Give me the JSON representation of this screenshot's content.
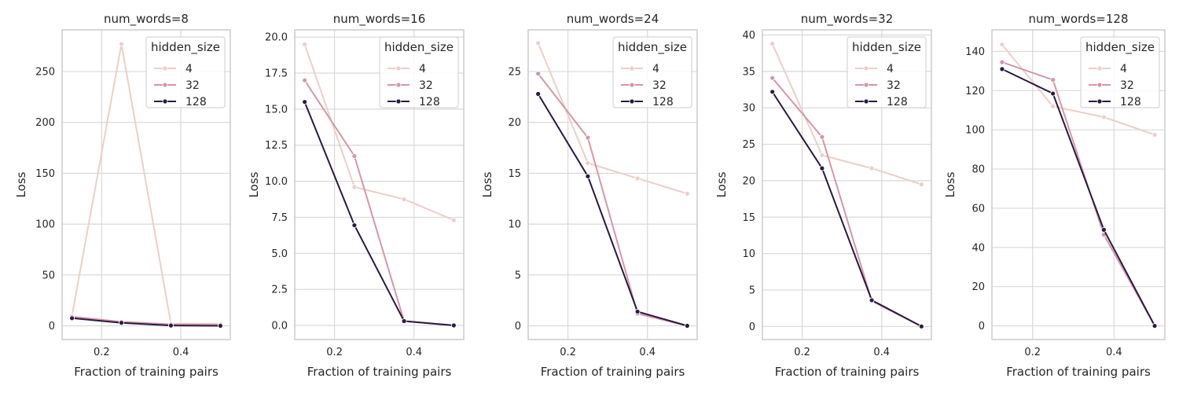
{
  "chart_data": [
    {
      "type": "line",
      "title": "num_words=8",
      "xlabel": "Fraction of training pairs",
      "ylabel": "Loss",
      "x": [
        0.125,
        0.25,
        0.375,
        0.5
      ],
      "xlim": [
        0.1,
        0.525
      ],
      "ylim": [
        -13.5,
        291
      ],
      "xticks": [
        0.2,
        0.4
      ],
      "xtick_labels": [
        "0.2",
        "0.4"
      ],
      "yticks": [
        0,
        50,
        100,
        150,
        200,
        250
      ],
      "ytick_labels": [
        "0",
        "50",
        "100",
        "150",
        "200",
        "250"
      ],
      "legend": {
        "title": "hidden_size",
        "placement": "top-right"
      },
      "series": [
        {
          "name": "4",
          "color": "#ebcfc8",
          "values": [
            10.0,
            277.0,
            2.0,
            2.0
          ]
        },
        {
          "name": "32",
          "color": "#d497a7",
          "values": [
            9.0,
            4.0,
            1.5,
            1.0
          ]
        },
        {
          "name": "128",
          "color": "#2a1a40",
          "values": [
            7.5,
            3.0,
            0.3,
            0.0
          ]
        }
      ],
      "grid": true
    },
    {
      "type": "line",
      "title": "num_words=16",
      "xlabel": "Fraction of training pairs",
      "ylabel": "Loss",
      "x": [
        0.125,
        0.25,
        0.375,
        0.5
      ],
      "xlim": [
        0.1,
        0.525
      ],
      "ylim": [
        -0.98,
        20.5
      ],
      "xticks": [
        0.2,
        0.4
      ],
      "xtick_labels": [
        "0.2",
        "0.4"
      ],
      "yticks": [
        0,
        2.5,
        5,
        7.5,
        10,
        12.5,
        15,
        17.5,
        20
      ],
      "ytick_labels": [
        "0.0",
        "2.5",
        "5.0",
        "7.5",
        "10.0",
        "12.5",
        "15.0",
        "17.5",
        "20.0"
      ],
      "legend": {
        "title": "hidden_size",
        "placement": "top-right"
      },
      "series": [
        {
          "name": "4",
          "color": "#ebcfc8",
          "values": [
            19.5,
            9.6,
            8.75,
            7.3
          ]
        },
        {
          "name": "32",
          "color": "#d497a7",
          "values": [
            17.0,
            11.75,
            0.3,
            0.0
          ]
        },
        {
          "name": "128",
          "color": "#2a1a40",
          "values": [
            15.5,
            6.95,
            0.3,
            0.0
          ]
        }
      ],
      "grid": true
    },
    {
      "type": "line",
      "title": "num_words=24",
      "xlabel": "Fraction of training pairs",
      "ylabel": "Loss",
      "x": [
        0.125,
        0.25,
        0.375,
        0.5
      ],
      "xlim": [
        0.1,
        0.525
      ],
      "ylim": [
        -1.35,
        29.1
      ],
      "xticks": [
        0.2,
        0.4
      ],
      "xtick_labels": [
        "0.2",
        "0.4"
      ],
      "yticks": [
        0,
        5,
        10,
        15,
        20,
        25
      ],
      "ytick_labels": [
        "0",
        "5",
        "10",
        "15",
        "20",
        "25"
      ],
      "legend": {
        "title": "hidden_size",
        "placement": "top-right"
      },
      "series": [
        {
          "name": "4",
          "color": "#ebcfc8",
          "values": [
            27.8,
            16.0,
            14.5,
            13.0
          ]
        },
        {
          "name": "32",
          "color": "#d497a7",
          "values": [
            24.8,
            18.5,
            1.2,
            0.0
          ]
        },
        {
          "name": "128",
          "color": "#2a1a40",
          "values": [
            22.8,
            14.7,
            1.4,
            0.0
          ]
        }
      ],
      "grid": true
    },
    {
      "type": "line",
      "title": "num_words=32",
      "xlabel": "Fraction of training pairs",
      "ylabel": "Loss",
      "x": [
        0.125,
        0.25,
        0.375,
        0.5
      ],
      "xlim": [
        0.1,
        0.525
      ],
      "ylim": [
        -1.8,
        40.7
      ],
      "xticks": [
        0.2,
        0.4
      ],
      "xtick_labels": [
        "0.2",
        "0.4"
      ],
      "yticks": [
        0,
        5,
        10,
        15,
        20,
        25,
        30,
        35,
        40
      ],
      "ytick_labels": [
        "0",
        "5",
        "10",
        "15",
        "20",
        "25",
        "30",
        "35",
        "40"
      ],
      "legend": {
        "title": "hidden_size",
        "placement": "top-right"
      },
      "series": [
        {
          "name": "4",
          "color": "#ebcfc8",
          "values": [
            38.8,
            23.5,
            21.7,
            19.5
          ]
        },
        {
          "name": "32",
          "color": "#d497a7",
          "values": [
            34.1,
            26.0,
            3.5,
            0.0
          ]
        },
        {
          "name": "128",
          "color": "#2a1a40",
          "values": [
            32.2,
            21.7,
            3.6,
            0.0
          ]
        }
      ],
      "grid": true
    },
    {
      "type": "line",
      "title": "num_words=128",
      "xlabel": "Fraction of training pairs",
      "ylabel": "Loss",
      "x": [
        0.125,
        0.25,
        0.375,
        0.5
      ],
      "xlim": [
        0.1,
        0.525
      ],
      "ylim": [
        -7.0,
        151
      ],
      "xticks": [
        0.2,
        0.4
      ],
      "xtick_labels": [
        "0.2",
        "0.4"
      ],
      "yticks": [
        0,
        20,
        40,
        60,
        80,
        100,
        120,
        140
      ],
      "ytick_labels": [
        "0",
        "20",
        "40",
        "60",
        "80",
        "100",
        "120",
        "140"
      ],
      "legend": {
        "title": "hidden_size",
        "placement": "top-right"
      },
      "series": [
        {
          "name": "4",
          "color": "#ebcfc8",
          "values": [
            143.5,
            112.0,
            106.5,
            97.5
          ]
        },
        {
          "name": "32",
          "color": "#d497a7",
          "values": [
            134.5,
            125.5,
            46.5,
            0.0
          ]
        },
        {
          "name": "128",
          "color": "#2a1a40",
          "values": [
            131.0,
            118.5,
            49.0,
            0.0
          ]
        }
      ],
      "grid": true
    }
  ]
}
